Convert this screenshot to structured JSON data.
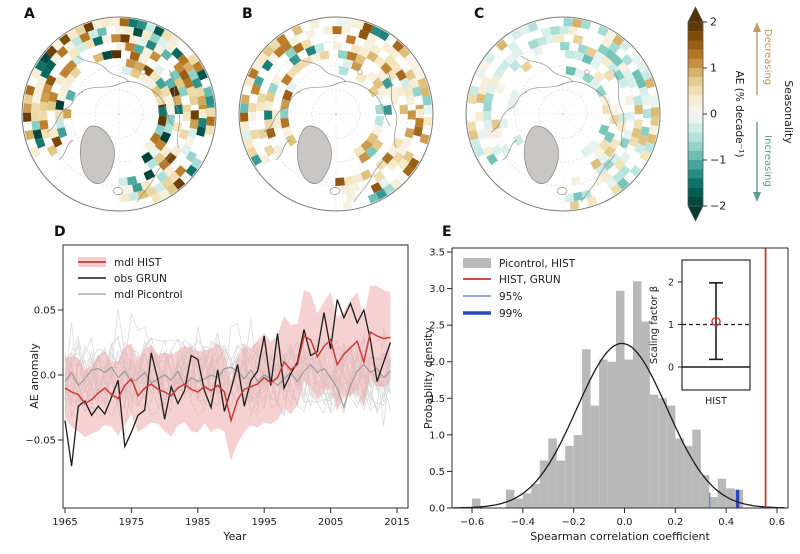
{
  "figure": {
    "panels": {
      "a_label": "A",
      "b_label": "B",
      "c_label": "C",
      "d_label": "D",
      "e_label": "E"
    }
  },
  "colorbar": {
    "label": "AE (% decade⁻¹)",
    "ticks": [
      "2",
      "1",
      "0",
      "−1",
      "−2"
    ],
    "tick_values": [
      2,
      1,
      0,
      -1,
      -2
    ],
    "seasonality_label": "Seasonality",
    "decreasing_label": "Decreasing",
    "increasing_label": "Increasing",
    "decreasing_color": "#c09a5e",
    "increasing_color": "#5f9e94",
    "palette": [
      "#543005",
      "#8c510a",
      "#bf812d",
      "#dfc27d",
      "#f6e8c3",
      "#f7f7f5",
      "#c7eae5",
      "#80cdc1",
      "#35978f",
      "#01665e",
      "#003c30"
    ]
  },
  "maps": {
    "style": {
      "land_color": "#ffffff",
      "greenland_color": "#c9c7c5",
      "coast_color": "#8f8f88",
      "graticule_color": "#d4d4d4",
      "boundary_color": "#7a7a74"
    },
    "panels": [
      {
        "label": "A",
        "seed": 7,
        "brown_prob": 0.72,
        "max_intensity": 1.9,
        "fill_prob": 0.78,
        "teal_cluster": true
      },
      {
        "label": "B",
        "seed": 101,
        "brown_prob": 0.72,
        "max_intensity": 1.5,
        "fill_prob": 0.62,
        "teal_cluster": false
      },
      {
        "label": "C",
        "seed": 23,
        "brown_prob": 0.33,
        "max_intensity": 0.8,
        "fill_prob": 0.58,
        "teal_cluster": false
      }
    ]
  },
  "chart_data": [
    {
      "id": "D",
      "type": "line",
      "xlabel": "Year",
      "ylabel": "AE anomaly",
      "xlim": [
        1964.7,
        2016.7
      ],
      "ylim": [
        -0.102,
        0.1
      ],
      "x_tick_values": [
        1965,
        1975,
        1985,
        1995,
        2005,
        2015
      ],
      "x_tick_labels": [
        "1965",
        "1975",
        "1985",
        "1995",
        "2005",
        "2015"
      ],
      "y_tick_values": [
        0.05,
        0.0,
        -0.05
      ],
      "y_tick_labels": [
        "0.05",
        "0.0",
        "−0.05"
      ],
      "years_start": 1965,
      "series": [
        {
          "name": "mdl HIST",
          "color": "#cb3a38",
          "width": 1.5,
          "values": [
            -0.01,
            -0.013,
            -0.015,
            -0.022,
            -0.019,
            -0.014,
            -0.01,
            -0.015,
            -0.018,
            -0.008,
            -0.003,
            -0.016,
            -0.01,
            -0.007,
            -0.011,
            -0.013,
            -0.016,
            -0.01,
            -0.007,
            -0.011,
            -0.013,
            -0.009,
            -0.012,
            -0.008,
            -0.013,
            -0.035,
            -0.019,
            -0.011,
            -0.009,
            -0.007,
            -0.002,
            -0.006,
            -0.002,
            0.01,
            0.004,
            0.008,
            0.03,
            0.027,
            0.014,
            0.022,
            0.027,
            0.008,
            0.016,
            0.021,
            0.026,
            0.01,
            0.033,
            0.03,
            0.028,
            0.029
          ]
        },
        {
          "name": "obs GRUN",
          "color": "#1c1c1c",
          "width": 1.3,
          "values": [
            -0.035,
            -0.07,
            -0.024,
            -0.02,
            -0.031,
            -0.024,
            -0.03,
            -0.017,
            -0.004,
            -0.055,
            -0.044,
            -0.031,
            -0.027,
            0.017,
            -0.004,
            -0.034,
            -0.009,
            -0.022,
            -0.012,
            0.015,
            0.012,
            -0.012,
            -0.025,
            0.004,
            -0.028,
            -0.011,
            0.008,
            -0.024,
            -0.004,
            0.003,
            0.03,
            -0.008,
            0.032,
            -0.01,
            0.001,
            0.01,
            0.035,
            0.015,
            0.018,
            0.048,
            0.02,
            0.058,
            0.044,
            0.055,
            0.04,
            0.05,
            0.027,
            -0.005,
            0.01,
            0.025
          ]
        },
        {
          "name": "mdl Picontrol",
          "color": "#9c9c9c",
          "width": 1.2,
          "values": [
            -0.005,
            0.002,
            -0.008,
            -0.003,
            0.004,
            0.005,
            0.002,
            0.006,
            -0.002,
            0.003,
            -0.005,
            -0.003,
            0.002,
            -0.006,
            -0.003,
            0.0,
            -0.004,
            0.003,
            -0.008,
            -0.002,
            -0.005,
            -0.003,
            0.0,
            -0.002,
            0.005,
            0.006,
            0.003,
            -0.003,
            0.004,
            -0.005,
            0.0,
            -0.003,
            -0.008,
            -0.003,
            0.002,
            -0.005,
            0.003,
            0.008,
            0.002,
            0.005,
            -0.002,
            -0.01,
            -0.025,
            -0.008,
            0.003,
            0.008,
            0.002,
            0.005,
            -0.002,
            0.003
          ]
        }
      ],
      "band": {
        "color": "#eda4a4",
        "opacity": 0.5,
        "base": 0.023,
        "growth": 0.011,
        "wobble": 0.005
      },
      "ensemble": {
        "count": 18,
        "color": "#d7d7d7",
        "width": 0.8,
        "seed": 211
      }
    },
    {
      "id": "E",
      "type": "histogram",
      "xlabel": "Spearman correlation coefficient",
      "ylabel": "Probability density",
      "xlim": [
        -0.679,
        0.643
      ],
      "ylim": [
        0,
        3.56
      ],
      "x_tick_values": [
        -0.6,
        -0.4,
        -0.2,
        0.0,
        0.2,
        0.4,
        0.6
      ],
      "x_tick_labels": [
        "−0.6",
        "−0.4",
        "−0.2",
        "0.0",
        "0.2",
        "0.4",
        "0.6"
      ],
      "y_tick_values": [
        0.0,
        0.5,
        1.0,
        1.5,
        2.0,
        2.5,
        3.0,
        3.5
      ],
      "y_tick_labels": [
        "0.0",
        "0.5",
        "1.0",
        "1.5",
        "2.0",
        "2.5",
        "3.0",
        "3.5"
      ],
      "bins_start": -0.6,
      "bin_width": 0.033333,
      "bar_color": "#b9b9b9",
      "heights": [
        0.13,
        0,
        0,
        0,
        0.25,
        0.13,
        0.2,
        0.33,
        0.65,
        0.95,
        0.65,
        0.85,
        1.0,
        2.17,
        1.4,
        2.03,
        2.0,
        2.97,
        2.03,
        3.1,
        2.55,
        1.55,
        1.5,
        1.4,
        0.95,
        0.85,
        1.07,
        0.45,
        0.15,
        0.4,
        0.27,
        0.25,
        0,
        0,
        0,
        0
      ],
      "gauss": {
        "mean": -0.01,
        "sigma": 0.177,
        "amp": 2.25,
        "color": "#1c1c1c"
      },
      "red_line": {
        "value": 0.555,
        "color": "#cb2f2f"
      },
      "p95": {
        "value": 0.335,
        "height": 0.21,
        "color": "#7b87cd"
      },
      "p99": {
        "value": 0.445,
        "height": 0.25,
        "color": "#2b49c4"
      },
      "legend": [
        "Picontrol, HIST",
        "HIST, GRUN",
        "95%",
        "99%"
      ],
      "inset": {
        "ylabel": "Scaling factor β",
        "x_label": "HIST",
        "y_tick_values": [
          0,
          1,
          2
        ],
        "y_tick_labels": [
          "0",
          "1",
          "2"
        ],
        "best": 1.07,
        "lo": 0.18,
        "hi": 1.98,
        "dashed_at": 1,
        "solid_at": 0,
        "marker_color": "#cb3a38"
      }
    }
  ]
}
